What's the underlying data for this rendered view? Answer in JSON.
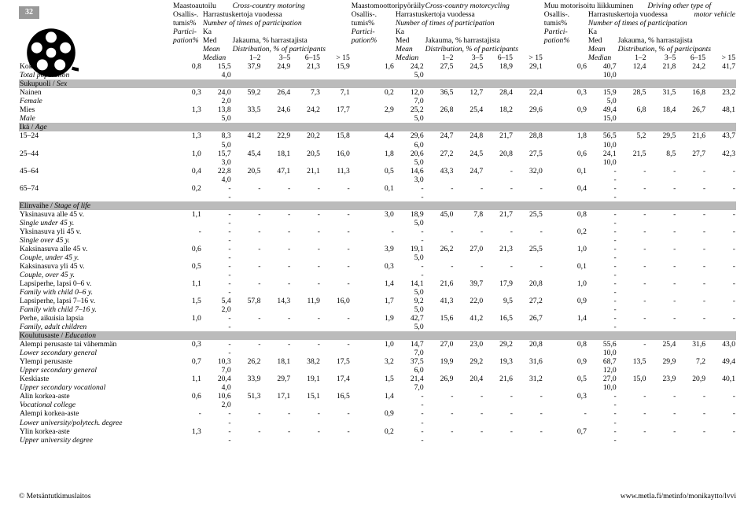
{
  "page_number": "32",
  "logo_colors": {
    "ring": "#000000",
    "bg": "#ffffff"
  },
  "footer_left": "© Metsäntutkimuslaitos",
  "footer_right": "www.metla.fi/metinfo/monikaytto/lvvi",
  "sports": [
    {
      "fi": "Maastoautoilu",
      "en": "Cross-country motoring"
    },
    {
      "fi": "Maastomoottoripyöräily",
      "en": "Cross-country motorcycling"
    },
    {
      "fi": "Muu motorisoitu liikkuminen",
      "en": "Driving other type of"
    }
  ],
  "hdr": {
    "osallis": "Osallis-.",
    "harrast_fi": "Harrastuskertoja vuodessa",
    "motor_vehicle": "motor vehicle",
    "tumis": "tumis%",
    "ntimes": "Number of times of participation",
    "partici": "Partici-",
    "ka": "Ka",
    "pation": "pation%",
    "med": "Med",
    "jakauma": "Jakauma, % harrastajista",
    "mean": "Mean",
    "dist": "Distribution, % of participants",
    "median": "Median",
    "b12": "1–2",
    "b35": "3–5",
    "b615": "6–15",
    "bgt15": "> 15"
  },
  "sections": [
    {
      "type": "data",
      "label_fi": "Koko väestö",
      "label_en": "Total population",
      "r1": [
        "0,8",
        "15,5",
        "37,9",
        "24,9",
        "21,3",
        "15,9",
        "1,6",
        "24,2",
        "27,5",
        "24,5",
        "18,9",
        "29,1",
        "0,6",
        "40,7",
        "12,4",
        "21,8",
        "24,2",
        "41,7"
      ],
      "r2": [
        "",
        "4,0",
        "",
        "",
        "",
        "",
        "",
        "5,0",
        "",
        "",
        "",
        "",
        "",
        "10,0",
        "",
        "",
        "",
        ""
      ]
    },
    {
      "type": "section",
      "fi": "Sukupuoli",
      "en": "Sex"
    },
    {
      "type": "data",
      "label_fi": "Nainen",
      "label_en": "Female",
      "r1": [
        "0,3",
        "24,0",
        "59,2",
        "26,4",
        "7,3",
        "7,1",
        "0,2",
        "12,0",
        "36,5",
        "12,7",
        "28,4",
        "22,4",
        "0,3",
        "15,9",
        "28,5",
        "31,5",
        "16,8",
        "23,2"
      ],
      "r2": [
        "",
        "2,0",
        "",
        "",
        "",
        "",
        "",
        "7,0",
        "",
        "",
        "",
        "",
        "",
        "5,0",
        "",
        "",
        "",
        ""
      ]
    },
    {
      "type": "data",
      "label_fi": "Mies",
      "label_en": "Male",
      "r1": [
        "1,3",
        "13,8",
        "33,5",
        "24,6",
        "24,2",
        "17,7",
        "2,9",
        "25,2",
        "26,8",
        "25,4",
        "18,2",
        "29,6",
        "0,9",
        "49,4",
        "6,8",
        "18,4",
        "26,7",
        "48,1"
      ],
      "r2": [
        "",
        "5,0",
        "",
        "",
        "",
        "",
        "",
        "5,0",
        "",
        "",
        "",
        "",
        "",
        "15,0",
        "",
        "",
        "",
        ""
      ]
    },
    {
      "type": "section",
      "fi": "Ikä",
      "en": "Age"
    },
    {
      "type": "data",
      "label_fi": "15–24",
      "label_en": "",
      "r1": [
        "1,3",
        "8,3",
        "41,2",
        "22,9",
        "20,2",
        "15,8",
        "4,4",
        "29,6",
        "24,7",
        "24,8",
        "21,7",
        "28,8",
        "1,8",
        "56,5",
        "5,2",
        "29,5",
        "21,6",
        "43,7"
      ],
      "r2": [
        "",
        "5,0",
        "",
        "",
        "",
        "",
        "",
        "6,0",
        "",
        "",
        "",
        "",
        "",
        "10,0",
        "",
        "",
        "",
        ""
      ]
    },
    {
      "type": "data",
      "label_fi": "25–44",
      "label_en": "",
      "r1": [
        "1,0",
        "15,7",
        "45,4",
        "18,1",
        "20,5",
        "16,0",
        "1,8",
        "20,6",
        "27,2",
        "24,5",
        "20,8",
        "27,5",
        "0,6",
        "24,1",
        "21,5",
        "8,5",
        "27,7",
        "42,3"
      ],
      "r2": [
        "",
        "3,0",
        "",
        "",
        "",
        "",
        "",
        "5,0",
        "",
        "",
        "",
        "",
        "",
        "10,0",
        "",
        "",
        "",
        ""
      ]
    },
    {
      "type": "data",
      "label_fi": "45–64",
      "label_en": "",
      "r1": [
        "0,4",
        "22,8",
        "20,5",
        "47,1",
        "21,1",
        "11,3",
        "0,5",
        "14,6",
        "43,3",
        "24,7",
        "-",
        "32,0",
        "0,1",
        "-",
        "-",
        "-",
        "-",
        "-"
      ],
      "r2": [
        "",
        "4,0",
        "",
        "",
        "",
        "",
        "",
        "3,0",
        "",
        "",
        "",
        "",
        "",
        "-",
        "",
        "",
        "",
        ""
      ]
    },
    {
      "type": "data",
      "label_fi": "65–74",
      "label_en": "",
      "r1": [
        "0,2",
        "-",
        "-",
        "-",
        "-",
        "-",
        "0,1",
        "-",
        "-",
        "-",
        "-",
        "-",
        "0,4",
        "-",
        "-",
        "-",
        "-",
        "-"
      ],
      "r2": [
        "",
        "-",
        "",
        "",
        "",
        "",
        "",
        "-",
        "",
        "",
        "",
        "",
        "",
        "-",
        "",
        "",
        "",
        ""
      ]
    },
    {
      "type": "section",
      "fi": "Elinvaihe",
      "en": "Stage of life"
    },
    {
      "type": "data",
      "label_fi": "Yksinasuva alle 45 v.",
      "label_en": "Single under 45 y.",
      "r1": [
        "1,1",
        "-",
        "-",
        "-",
        "-",
        "-",
        "3,0",
        "18,9",
        "45,0",
        "7,8",
        "21,7",
        "25,5",
        "0,8",
        "-",
        "-",
        "-",
        "-",
        "-"
      ],
      "r2": [
        "",
        "-",
        "",
        "",
        "",
        "",
        "",
        "5,0",
        "",
        "",
        "",
        "",
        "",
        "-",
        "",
        "",
        "",
        ""
      ]
    },
    {
      "type": "data",
      "label_fi": "Yksinasuva yli 45 v.",
      "label_en": "Single over 45 y.",
      "r1": [
        "-",
        "-",
        "-",
        "-",
        "-",
        "-",
        "-",
        "-",
        "-",
        "-",
        "-",
        "-",
        "0,2",
        "-",
        "-",
        "-",
        "-",
        "-"
      ],
      "r2": [
        "",
        "-",
        "",
        "",
        "",
        "",
        "",
        "-",
        "",
        "",
        "",
        "",
        "",
        "-",
        "",
        "",
        "",
        ""
      ]
    },
    {
      "type": "data",
      "label_fi": "Kaksinasuva alle 45 v.",
      "label_en": "Couple, under 45 y.",
      "r1": [
        "0,6",
        "-",
        "-",
        "-",
        "-",
        "-",
        "3,9",
        "19,1",
        "26,2",
        "27,0",
        "21,3",
        "25,5",
        "1,0",
        "-",
        "-",
        "-",
        "-",
        "-"
      ],
      "r2": [
        "",
        "-",
        "",
        "",
        "",
        "",
        "",
        "5,0",
        "",
        "",
        "",
        "",
        "",
        "-",
        "",
        "",
        "",
        ""
      ]
    },
    {
      "type": "data",
      "label_fi": "Kaksinasuva yli 45 v.",
      "label_en": "Couple, over 45 y.",
      "r1": [
        "0,5",
        "-",
        "-",
        "-",
        "-",
        "-",
        "0,3",
        "-",
        "-",
        "-",
        "-",
        "-",
        "0,1",
        "-",
        "-",
        "-",
        "-",
        "-"
      ],
      "r2": [
        "",
        "-",
        "",
        "",
        "",
        "",
        "",
        "-",
        "",
        "",
        "",
        "",
        "",
        "-",
        "",
        "",
        "",
        ""
      ]
    },
    {
      "type": "data",
      "label_fi": "Lapsiperhe, lapsi 0–6 v.",
      "label_en": "Family with child 0–6 y.",
      "r1": [
        "1,1",
        "-",
        "-",
        "-",
        "-",
        "-",
        "1,4",
        "14,1",
        "21,6",
        "39,7",
        "17,9",
        "20,8",
        "1,0",
        "-",
        "-",
        "-",
        "-",
        "-"
      ],
      "r2": [
        "",
        "-",
        "",
        "",
        "",
        "",
        "",
        "5,0",
        "",
        "",
        "",
        "",
        "",
        "-",
        "",
        "",
        "",
        ""
      ]
    },
    {
      "type": "data",
      "label_fi": "Lapsiperhe, lapsi 7–16 v.",
      "label_en": "Family with child 7–16 y.",
      "r1": [
        "1,5",
        "5,4",
        "57,8",
        "14,3",
        "11,9",
        "16,0",
        "1,7",
        "9,2",
        "41,3",
        "22,0",
        "9,5",
        "27,2",
        "0,9",
        "-",
        "-",
        "-",
        "-",
        "-"
      ],
      "r2": [
        "",
        "2,0",
        "",
        "",
        "",
        "",
        "",
        "5,0",
        "",
        "",
        "",
        "",
        "",
        "-",
        "",
        "",
        "",
        ""
      ]
    },
    {
      "type": "data",
      "label_fi": "Perhe, aikuisia lapsia",
      "label_en": "Family, adult children",
      "r1": [
        "1,0",
        "-",
        "-",
        "-",
        "-",
        "-",
        "1,9",
        "42,7",
        "15,6",
        "41,2",
        "16,5",
        "26,7",
        "1,4",
        "-",
        "-",
        "-",
        "-",
        "-"
      ],
      "r2": [
        "",
        "-",
        "",
        "",
        "",
        "",
        "",
        "5,0",
        "",
        "",
        "",
        "",
        "",
        "-",
        "",
        "",
        "",
        ""
      ]
    },
    {
      "type": "section",
      "fi": "Koulutusaste",
      "en": "Education"
    },
    {
      "type": "data",
      "label_fi": "Alempi perusaste tai vähemmän",
      "label_en": "Lower secondary general",
      "r1": [
        "0,3",
        "-",
        "-",
        "-",
        "-",
        "-",
        "1,0",
        "14,7",
        "27,0",
        "23,0",
        "29,2",
        "20,8",
        "0,8",
        "55,6",
        "-",
        "25,4",
        "31,6",
        "43,0"
      ],
      "r2": [
        "",
        "-",
        "",
        "",
        "",
        "",
        "",
        "7,0",
        "",
        "",
        "",
        "",
        "",
        "10,0",
        "",
        "",
        "",
        ""
      ]
    },
    {
      "type": "data",
      "label_fi": "Ylempi perusaste",
      "label_en": "Upper secondary general",
      "r1": [
        "0,7",
        "10,3",
        "26,2",
        "18,1",
        "38,2",
        "17,5",
        "3,2",
        "37,5",
        "19,9",
        "29,2",
        "19,3",
        "31,6",
        "0,9",
        "68,7",
        "13,5",
        "29,9",
        "7,2",
        "49,4"
      ],
      "r2": [
        "",
        "7,0",
        "",
        "",
        "",
        "",
        "",
        "6,0",
        "",
        "",
        "",
        "",
        "",
        "12,0",
        "",
        "",
        "",
        ""
      ]
    },
    {
      "type": "data",
      "label_fi": "Keskiaste",
      "label_en": "Upper secondary vocational",
      "r1": [
        "1,1",
        "20,4",
        "33,9",
        "29,7",
        "19,1",
        "17,4",
        "1,5",
        "21,4",
        "26,9",
        "20,4",
        "21,6",
        "31,2",
        "0,5",
        "27,0",
        "15,0",
        "23,9",
        "20,9",
        "40,1"
      ],
      "r2": [
        "",
        "4,0",
        "",
        "",
        "",
        "",
        "",
        "7,0",
        "",
        "",
        "",
        "",
        "",
        "10,0",
        "",
        "",
        "",
        ""
      ]
    },
    {
      "type": "data",
      "label_fi": "Alin korkea-aste",
      "label_en": "Vocational college",
      "r1": [
        "0,6",
        "10,6",
        "51,3",
        "17,1",
        "15,1",
        "16,5",
        "1,4",
        "-",
        "-",
        "-",
        "-",
        "-",
        "0,3",
        "-",
        "-",
        "-",
        "-",
        "-"
      ],
      "r2": [
        "",
        "2,0",
        "",
        "",
        "",
        "",
        "",
        "-",
        "",
        "",
        "",
        "",
        "",
        "-",
        "",
        "",
        "",
        ""
      ]
    },
    {
      "type": "data",
      "label_fi": "Alempi korkea-aste",
      "label_en": "Lower university/polytech. degree",
      "r1": [
        "-",
        "-",
        "-",
        "-",
        "-",
        "-",
        "0,9",
        "-",
        "-",
        "-",
        "-",
        "-",
        "-",
        "-",
        "-",
        "-",
        "-",
        "-"
      ],
      "r2": [
        "",
        "-",
        "",
        "",
        "",
        "",
        "",
        "-",
        "",
        "",
        "",
        "",
        "",
        "-",
        "",
        "",
        "",
        ""
      ]
    },
    {
      "type": "data",
      "label_fi": "Ylin korkea-aste",
      "label_en": "Upper university degree",
      "r1": [
        "1,3",
        "-",
        "-",
        "-",
        "-",
        "-",
        "0,2",
        "-",
        "-",
        "-",
        "-",
        "-",
        "0,7",
        "-",
        "-",
        "-",
        "-",
        "-"
      ],
      "r2": [
        "",
        "-",
        "",
        "",
        "",
        "",
        "",
        "-",
        "",
        "",
        "",
        "",
        "",
        "-",
        "",
        "",
        "",
        ""
      ]
    }
  ]
}
